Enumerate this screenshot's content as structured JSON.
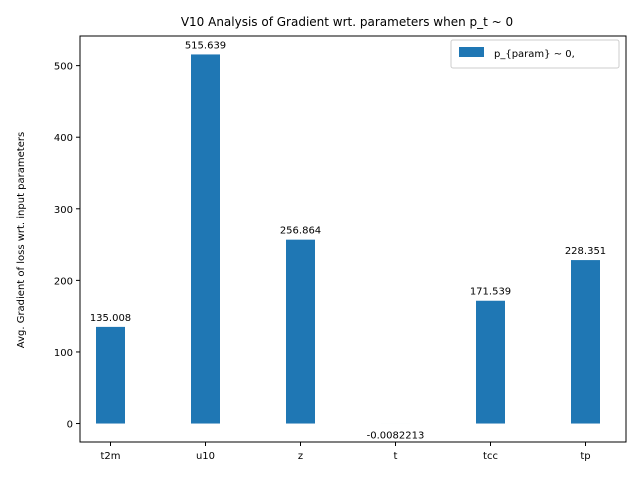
{
  "chart_data": {
    "type": "bar",
    "title": "V10 Analysis of Gradient wrt. parameters when p_t ~ 0",
    "xlabel": "",
    "ylabel": "Avg. Gradient of loss wrt. input parameters",
    "categories": [
      "t2m",
      "u10",
      "z",
      "t",
      "tcc",
      "tp"
    ],
    "series": [
      {
        "name": "p_{param} ~ 0,",
        "values": [
          135.008,
          515.639,
          256.864,
          -0.0082213,
          171.539,
          228.351
        ],
        "labels": [
          "135.008",
          "515.639",
          "256.864",
          "-0.0082213",
          "171.539",
          "228.351"
        ],
        "color": "#1f77b4"
      }
    ],
    "ylim": [
      -25.8,
      541.4
    ],
    "yticks": [
      0,
      100,
      200,
      300,
      400,
      500
    ],
    "grid": false,
    "legend_position": "top-right"
  }
}
